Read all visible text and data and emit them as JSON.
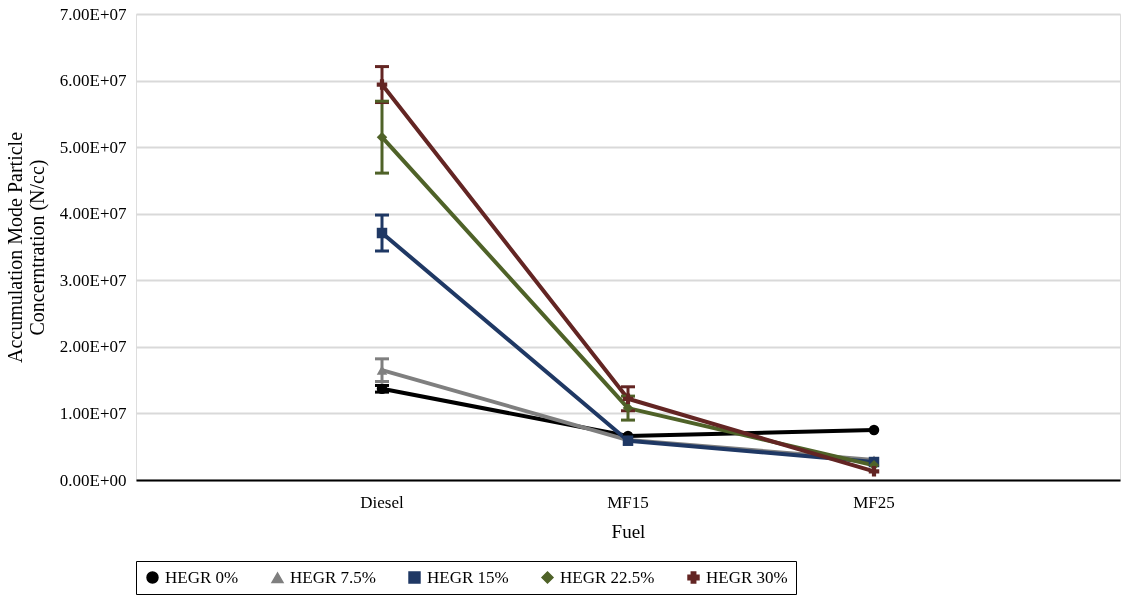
{
  "chart_data": {
    "type": "line",
    "xlabel": "Fuel",
    "ylabel": "Accumulation Mode Particle\nConcerntration (N/cc)",
    "categories": [
      "Diesel",
      "MF15",
      "MF25"
    ],
    "series": [
      {
        "name": "HEGR 0%",
        "color": "#000000",
        "marker": "circle",
        "values": [
          13700000,
          6600000,
          7500000
        ],
        "errors": [
          500000,
          null,
          null
        ]
      },
      {
        "name": "HEGR 7.5%",
        "color": "#7f7f7f",
        "marker": "triangle",
        "values": [
          16500000,
          6000000,
          3000000
        ],
        "errors": [
          1700000,
          null,
          null
        ]
      },
      {
        "name": "HEGR 15%",
        "color": "#1f3864",
        "marker": "square",
        "values": [
          37100000,
          5900000,
          2700000
        ],
        "errors": [
          2700000,
          null,
          null
        ]
      },
      {
        "name": "HEGR 22.5%",
        "color": "#4f6228",
        "marker": "diamond",
        "values": [
          51500000,
          10800000,
          2200000
        ],
        "errors": [
          5400000,
          1800000,
          null
        ]
      },
      {
        "name": "HEGR 30%",
        "color": "#632523",
        "marker": "cross",
        "values": [
          59400000,
          12200000,
          1300000
        ],
        "errors": [
          2700000,
          1800000,
          null
        ]
      }
    ],
    "ylim": [
      0,
      70000000
    ],
    "yticks": [
      {
        "value": 0,
        "label": "0.00E+00"
      },
      {
        "value": 10000000,
        "label": "1.00E+07"
      },
      {
        "value": 20000000,
        "label": "2.00E+07"
      },
      {
        "value": 30000000,
        "label": "3.00E+07"
      },
      {
        "value": 40000000,
        "label": "4.00E+07"
      },
      {
        "value": 50000000,
        "label": "5.00E+07"
      },
      {
        "value": 60000000,
        "label": "6.00E+07"
      },
      {
        "value": 70000000,
        "label": "7.00E+07"
      }
    ],
    "grid": "y",
    "legend": "bottom",
    "line_style": "solid"
  }
}
